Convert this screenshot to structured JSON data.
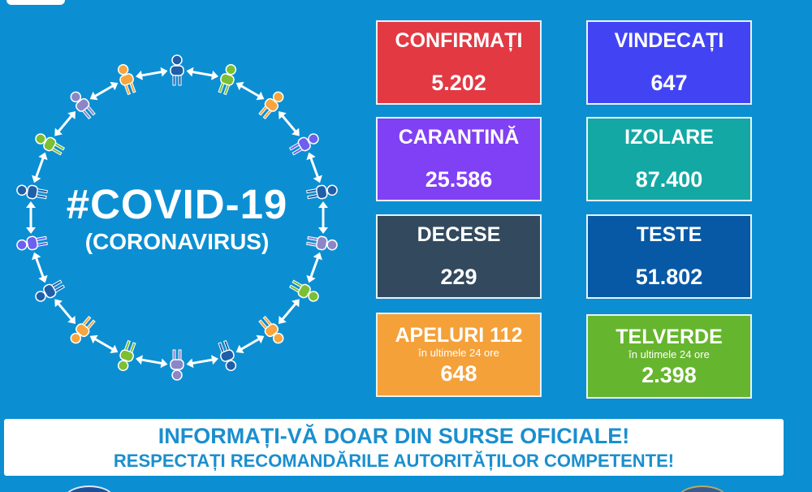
{
  "header": {
    "title": "#COVID-19",
    "subtitle": "(CORONAVIRUS)"
  },
  "cards": [
    {
      "label": "CONFIRMAȚI",
      "value": "5.202",
      "color": "#e23943"
    },
    {
      "label": "VINDECAȚI",
      "value": "647",
      "color": "#4244f4"
    },
    {
      "label": "CARANTINĂ",
      "value": "25.586",
      "color": "#8040f4"
    },
    {
      "label": "IZOLARE",
      "value": "87.400",
      "color": "#14a8a4"
    },
    {
      "label": "DECESE",
      "value": "229",
      "color": "#33495e"
    },
    {
      "label": "TESTE",
      "value": "51.802",
      "color": "#0759a6"
    },
    {
      "label": "APELURI 112",
      "sublabel": "în ultimele 24 ore",
      "value": "648",
      "color": "#f4a13a"
    },
    {
      "label": "TELVERDE",
      "sublabel": "în ultimele 24 ore",
      "value": "2.398",
      "color": "#66b52e"
    }
  ],
  "banner": {
    "line1": "INFORMAȚI-VĂ DOAR DIN SURSE OFICIALE!",
    "line2": "RESPECTAȚI RECOMANDĂRILE AUTORITĂȚILOR COMPETENTE!"
  },
  "colors": {
    "background": "#0b8fd2",
    "banner_text": "#1a8fce",
    "figures": [
      "#1f5ea8",
      "#7cbf33",
      "#f7a53c",
      "#6d5ff0",
      "#8c86c8"
    ]
  }
}
